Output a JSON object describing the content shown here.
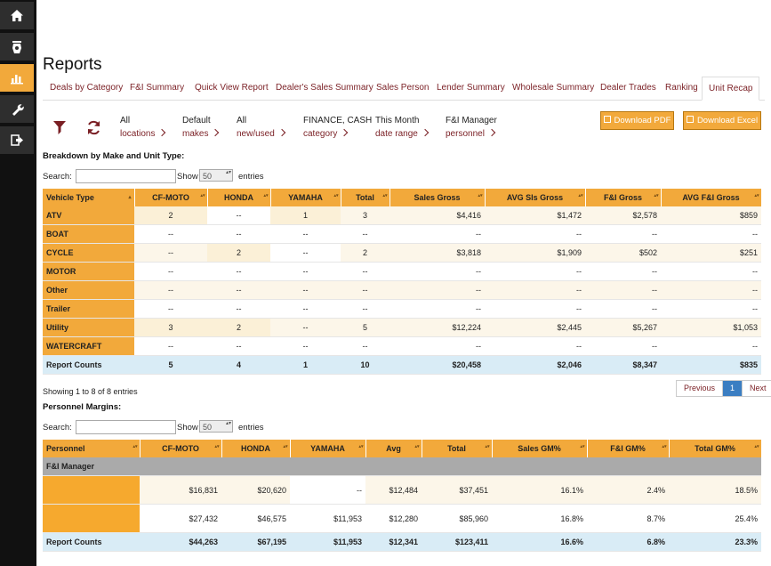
{
  "page_title": "Reports",
  "tabs": [
    "Deals by Category",
    "F&I Summary",
    "Quick View Report",
    "Dealer's Sales Summary",
    "Sales Person",
    "Lender Summary",
    "Wholesale Summary",
    "Dealer Trades",
    "Ranking",
    "Unit Recap"
  ],
  "active_tab": "Unit Recap",
  "filters": [
    {
      "key": "All",
      "value": "locations"
    },
    {
      "key": "Default",
      "value": "makes"
    },
    {
      "key": "All",
      "value": "new/used"
    },
    {
      "key": "FINANCE, CASH",
      "value": "category"
    },
    {
      "key": "This Month",
      "value": "date range"
    },
    {
      "key": "F&I Manager",
      "value": "personnel"
    }
  ],
  "buttons": {
    "pdf": "Download PDF",
    "excel": "Download Excel"
  },
  "section1": {
    "label": "Breakdown by Make and Unit Type:",
    "search_label": "Search:",
    "show_label": "Show",
    "entries_value": "50",
    "entries_label": "entries",
    "headers": [
      "Vehicle Type",
      "CF-MOTO",
      "HONDA",
      "YAMAHA",
      "Total",
      "Sales Gross",
      "AVG Sls Gross",
      "F&I Gross",
      "AVG F&I Gross"
    ],
    "rows": [
      [
        "ATV",
        "2",
        "--",
        "1",
        "3",
        "$4,416",
        "$1,472",
        "$2,578",
        "$859"
      ],
      [
        "BOAT",
        "--",
        "--",
        "--",
        "--",
        "--",
        "--",
        "--",
        "--"
      ],
      [
        "CYCLE",
        "--",
        "2",
        "--",
        "2",
        "$3,818",
        "$1,909",
        "$502",
        "$251"
      ],
      [
        "MOTOR",
        "--",
        "--",
        "--",
        "--",
        "--",
        "--",
        "--",
        "--"
      ],
      [
        "Other",
        "--",
        "--",
        "--",
        "--",
        "--",
        "--",
        "--",
        "--"
      ],
      [
        "Trailer",
        "--",
        "--",
        "--",
        "--",
        "--",
        "--",
        "--",
        "--"
      ],
      [
        "Utility",
        "3",
        "2",
        "--",
        "5",
        "$12,224",
        "$2,445",
        "$5,267",
        "$1,053"
      ],
      [
        "WATERCRAFT",
        "--",
        "--",
        "--",
        "--",
        "--",
        "--",
        "--",
        "--"
      ]
    ],
    "total_row": [
      "Report Counts",
      "5",
      "4",
      "1",
      "10",
      "$20,458",
      "$2,046",
      "$8,347",
      "$835"
    ],
    "info": "Showing 1 to 8 of 8 entries",
    "pager": {
      "prev": "Previous",
      "current": "1",
      "next": "Next"
    }
  },
  "section2": {
    "label": "Personnel Margins:",
    "search_label": "Search:",
    "show_label": "Show",
    "entries_value": "50",
    "entries_label": "entries",
    "headers": [
      "Personnel",
      "CF-MOTO",
      "HONDA",
      "YAMAHA",
      "Avg",
      "Total",
      "Sales GM%",
      "F&I GM%",
      "Total GM%"
    ],
    "group": "F&I Manager",
    "rows": [
      [
        "",
        "$16,831",
        "$20,620",
        "--",
        "$12,484",
        "$37,451",
        "16.1%",
        "2.4%",
        "18.5%"
      ],
      [
        "",
        "$27,432",
        "$46,575",
        "$11,953",
        "$12,280",
        "$85,960",
        "16.8%",
        "8.7%",
        "25.4%"
      ]
    ],
    "total_row": [
      "Report Counts",
      "$44,263",
      "$67,195",
      "$11,953",
      "$12,341",
      "$123,411",
      "16.6%",
      "6.8%",
      "23.3%"
    ]
  }
}
